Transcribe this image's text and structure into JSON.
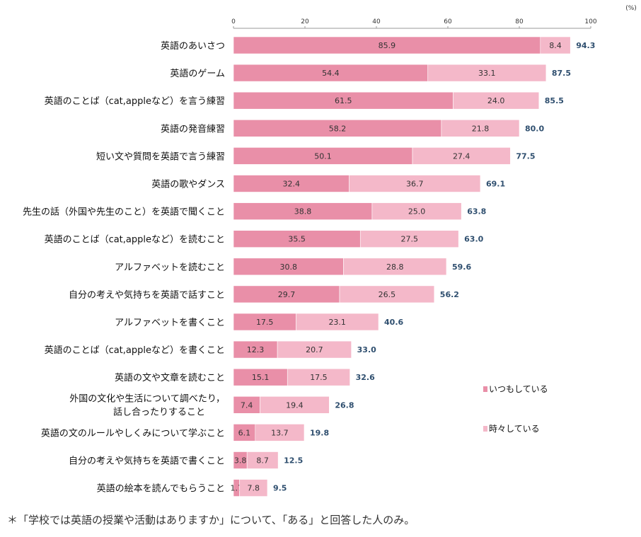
{
  "chart_data": {
    "type": "bar",
    "orientation": "horizontal",
    "stacked": true,
    "unit_label": "(%)",
    "xlim": [
      0,
      100
    ],
    "xticks": [
      0,
      20,
      40,
      60,
      80,
      100
    ],
    "grid": false,
    "legend_placement": "right",
    "categories": [
      [
        "英語のあいさつ"
      ],
      [
        "英語のゲーム"
      ],
      [
        "英語のことば（cat,appleなど）を言う練習"
      ],
      [
        "英語の発音練習"
      ],
      [
        "短い文や質問を英語で言う練習"
      ],
      [
        "英語の歌やダンス"
      ],
      [
        "先生の話（外国や先生のこと）を英語で聞くこと"
      ],
      [
        "英語のことば（cat,appleなど）を読むこと"
      ],
      [
        "アルファベットを読むこと"
      ],
      [
        "自分の考えや気持ちを英語で話すこと"
      ],
      [
        "アルファベットを書くこと"
      ],
      [
        "英語のことば（cat,appleなど）を書くこと"
      ],
      [
        "英語の文や文章を読むこと"
      ],
      [
        "外国の文化や生活について調べたり，",
        "話し合ったりすること"
      ],
      [
        "英語の文のルールやしくみについて学ぶこと"
      ],
      [
        "自分の考えや気持ちを英語で書くこと"
      ],
      [
        "英語の絵本を読んでもらうこと"
      ]
    ],
    "series": [
      {
        "name": "いつもしている",
        "color": "#e98fa8",
        "values": [
          85.9,
          54.4,
          61.5,
          58.2,
          50.1,
          32.4,
          38.8,
          35.5,
          30.8,
          29.7,
          17.5,
          12.3,
          15.1,
          7.4,
          6.1,
          3.8,
          1.7
        ]
      },
      {
        "name": "時々している",
        "color": "#f4b8c9",
        "values": [
          8.4,
          33.1,
          24.0,
          21.8,
          27.4,
          36.7,
          25.0,
          27.5,
          28.8,
          26.5,
          23.1,
          20.7,
          17.5,
          19.4,
          13.7,
          8.7,
          7.8
        ]
      }
    ],
    "totals": [
      94.3,
      87.5,
      85.5,
      80.0,
      77.5,
      69.1,
      63.8,
      63.0,
      59.6,
      56.2,
      40.6,
      33.0,
      32.6,
      26.8,
      19.8,
      12.5,
      9.5
    ],
    "total_color": "#2f4f6f"
  },
  "note": "＊「学校では英語の授業や活動はありますか」について、「ある」と回答した人のみ。"
}
